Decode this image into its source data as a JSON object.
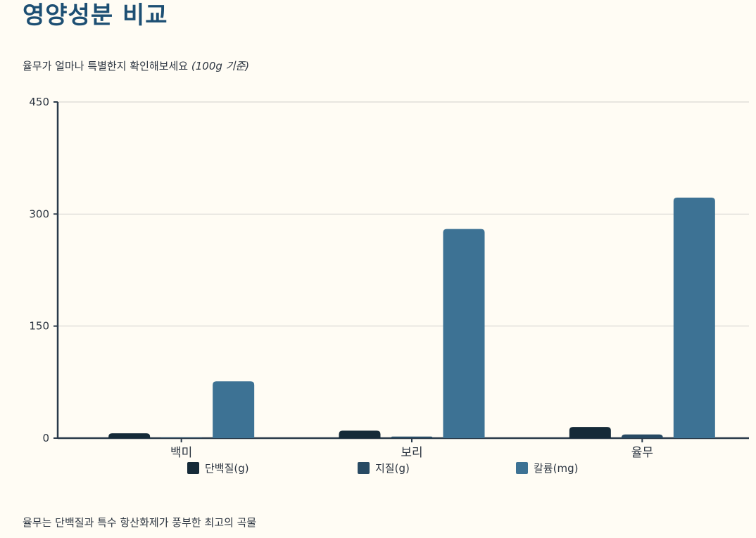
{
  "header": {
    "title": "영양성분 비교",
    "subtitle": "율무가 얼마나 특별한지 확인해보세요",
    "subtitle_note": "(100g 기준)"
  },
  "footer": {
    "text": "율무는 단백질과 특수 항산화제가 풍부한 최고의 곡물"
  },
  "colors": {
    "protein": "#152a38",
    "fat": "#284a63",
    "potassium": "#3d7294",
    "axis": "#2a3a4a",
    "grid": "#d0d0cc"
  },
  "chart_data": {
    "type": "bar",
    "categories": [
      "백미",
      "보리",
      "율무"
    ],
    "series": [
      {
        "name": "단백질(g)",
        "values": [
          6.5,
          10,
          15
        ]
      },
      {
        "name": "지질(g)",
        "values": [
          0.9,
          2.1,
          5
        ]
      },
      {
        "name": "칼륨(mg)",
        "values": [
          76,
          280,
          322
        ]
      }
    ],
    "yticks": [
      0,
      150,
      300,
      450
    ],
    "ylim": [
      0,
      450
    ],
    "grid": true,
    "legend_position": "bottom"
  }
}
